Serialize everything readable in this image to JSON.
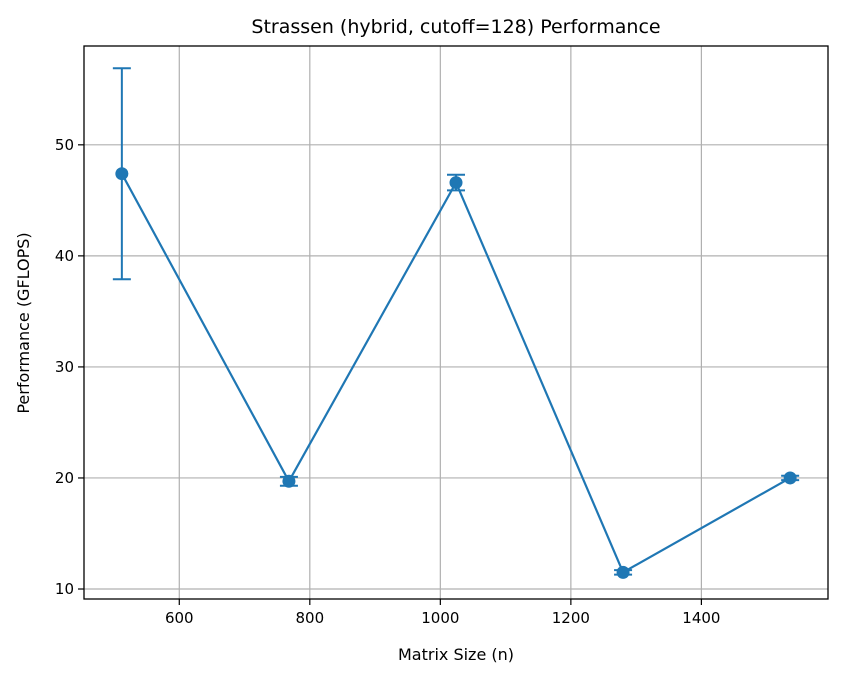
{
  "chart_data": {
    "type": "line",
    "title": "Strassen (hybrid, cutoff=128) Performance",
    "xlabel": "Matrix Size (n)",
    "ylabel": "Performance (GFLOPS)",
    "xlim": [
      454,
      1594
    ],
    "ylim": [
      9.1,
      58.9
    ],
    "xticks": [
      600,
      800,
      1000,
      1200,
      1400
    ],
    "yticks": [
      10,
      20,
      30,
      40,
      50
    ],
    "grid": true,
    "series": [
      {
        "color": "#1f77b4",
        "x": [
          512,
          768,
          1024,
          1280,
          1536
        ],
        "y": [
          47.4,
          19.7,
          46.6,
          11.5,
          20.0
        ],
        "yerr": [
          9.5,
          0.4,
          0.7,
          0.2,
          0.2
        ]
      }
    ]
  }
}
